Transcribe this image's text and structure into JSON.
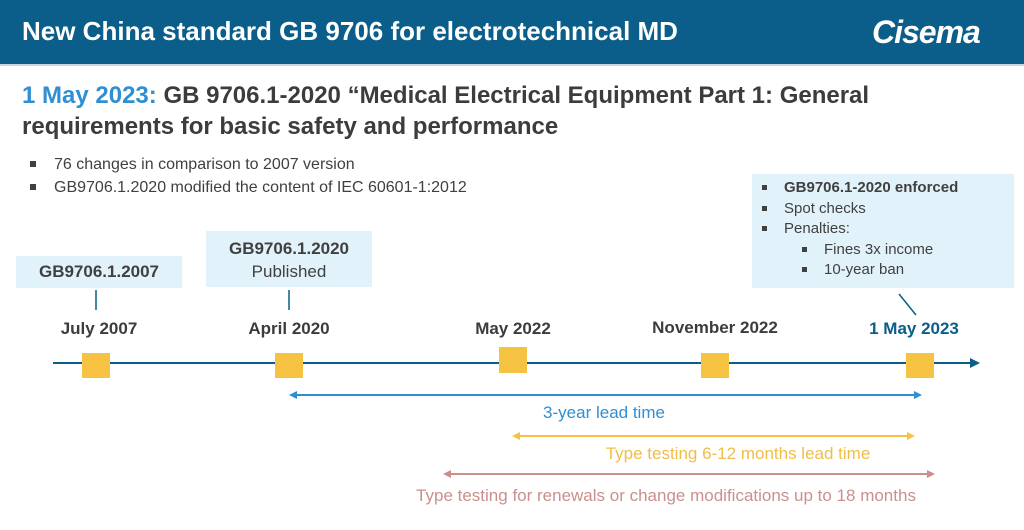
{
  "header": {
    "title": "New China standard GB 9706 for electrotechnical MD",
    "logo_text": "Cisema",
    "bg_color": "#0b5d8a"
  },
  "headline": {
    "date": "1 May 2023:",
    "text": "GB 9706.1-2020 “Medical Electrical Equipment Part 1: General requirements for basic safety and performance"
  },
  "bullets": [
    "76 changes in comparison to 2007 version",
    "GB9706.1.2020 modified the content of IEC 60601-1:2012"
  ],
  "callouts": {
    "v2007": {
      "title": "GB9706.1.2007"
    },
    "v2020": {
      "title": "GB9706.1.2020",
      "subtitle": "Published"
    },
    "enforced": {
      "items": [
        "GB9706.1-2020 enforced",
        "Spot checks",
        "Penalties:"
      ],
      "sub_items": [
        "Fines 3x income",
        "10-year ban"
      ]
    }
  },
  "timeline": {
    "dates": [
      "July 2007",
      "April 2020",
      "May 2022",
      "November 2022",
      "1 May 2023"
    ],
    "marker_color": "#f5c242",
    "axis_color": "#0b5d8a"
  },
  "spans": {
    "lead_time": {
      "label": "3-year lead time",
      "color": "#2e8fd3"
    },
    "type_testing": {
      "label": "Type testing 6-12 months lead time",
      "color": "#f5c242"
    },
    "renewals": {
      "label": "Type testing for renewals or change modifications up to 18 months",
      "color": "#c9908d"
    }
  }
}
